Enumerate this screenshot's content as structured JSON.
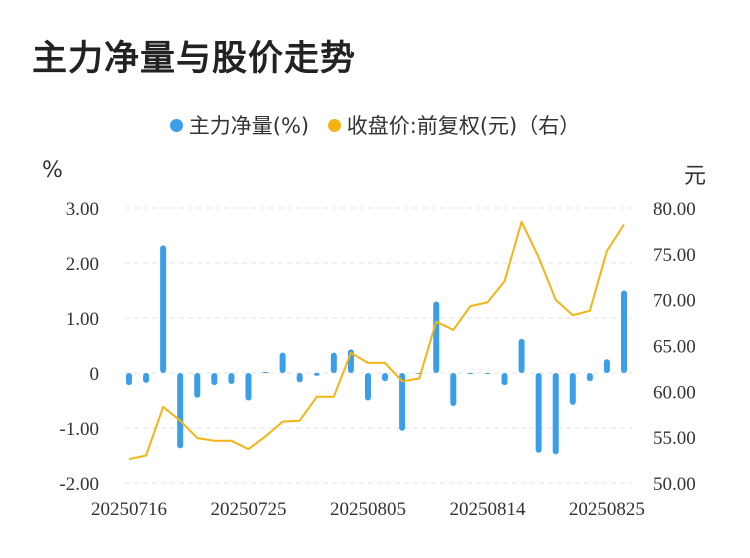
{
  "title": "主力净量与股价走势",
  "chart_data": {
    "type": "bar+line",
    "legend": [
      {
        "label": "主力净量(%)",
        "color": "#3a9ee8"
      },
      {
        "label": "收盘价:前复权(元)（右）",
        "color": "#f5b414"
      }
    ],
    "y_left": {
      "unit": "%",
      "ticks": [
        "3.00",
        "2.00",
        "1.00",
        "0",
        "-1.00",
        "-2.00"
      ],
      "range": [
        -2,
        3
      ]
    },
    "y_right": {
      "unit": "元",
      "ticks": [
        "80.00",
        "75.00",
        "70.00",
        "65.00",
        "60.00",
        "55.00",
        "50.00"
      ],
      "range": [
        50,
        80
      ]
    },
    "x_tick_labels": [
      "20250716",
      "20250725",
      "20250805",
      "20250814",
      "20250825"
    ],
    "grid": true,
    "bar_series": {
      "name": "主力净量(%)",
      "values": [
        -0.22,
        -0.18,
        2.32,
        -1.37,
        -0.45,
        -0.22,
        -0.2,
        -0.5,
        0.02,
        0.37,
        -0.17,
        -0.05,
        0.37,
        0.43,
        -0.5,
        -0.15,
        -1.05,
        0.0,
        1.3,
        -0.6,
        0.0,
        0.0,
        -0.22,
        0.62,
        -1.45,
        -1.48,
        -0.58,
        -0.15,
        0.25,
        1.5
      ]
    },
    "line_series": {
      "name": "收盘价:前复权(元)（右）",
      "values": [
        52.6,
        53.0,
        58.3,
        56.8,
        54.9,
        54.6,
        54.6,
        53.7,
        55.1,
        56.7,
        56.8,
        59.4,
        59.4,
        64.2,
        63.1,
        63.1,
        61.1,
        61.4,
        67.6,
        66.7,
        69.3,
        69.7,
        72.0,
        78.5,
        74.6,
        70.0,
        68.3,
        68.8,
        75.3,
        78.2
      ]
    }
  }
}
